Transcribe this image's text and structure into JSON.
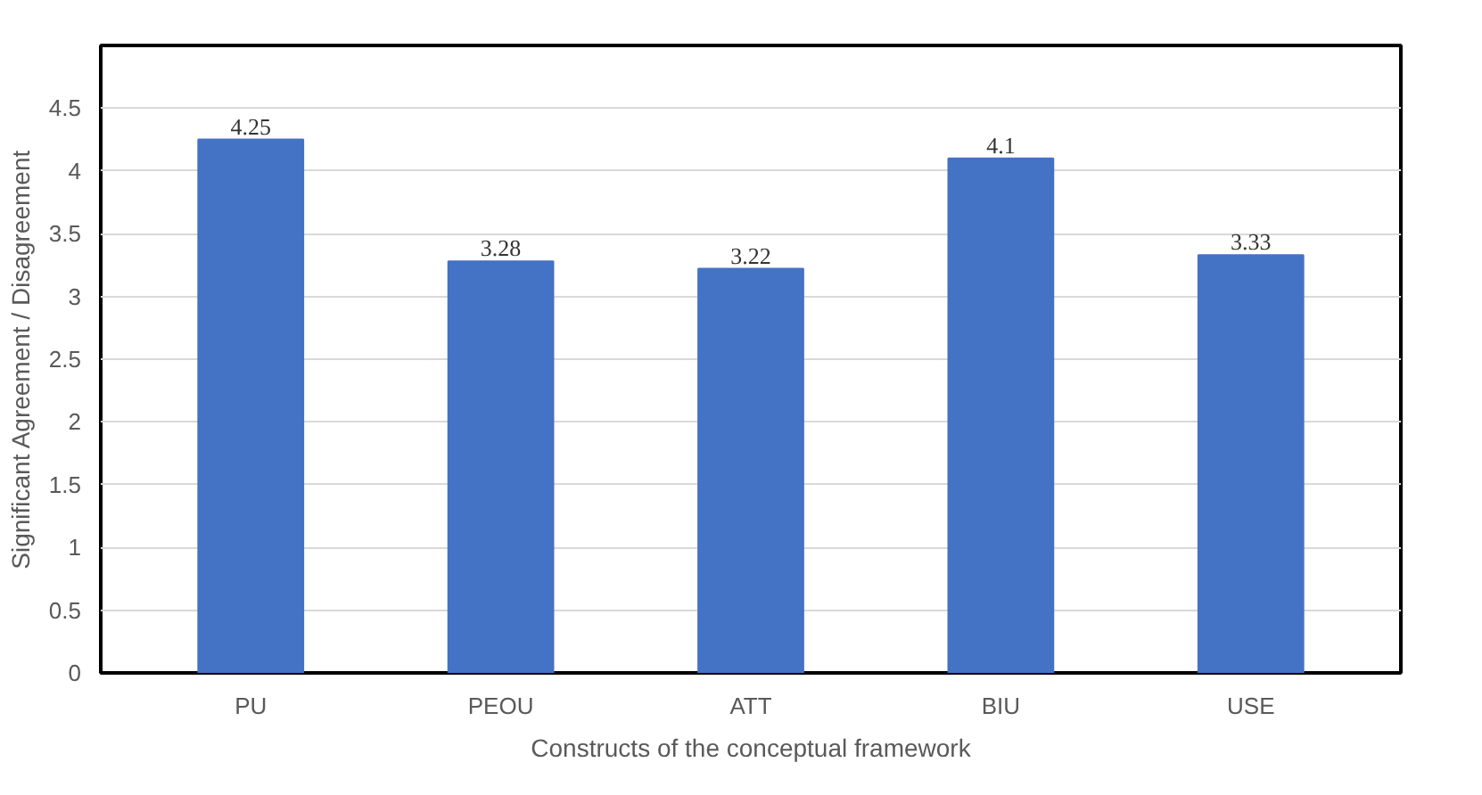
{
  "chart_data": {
    "type": "bar",
    "xlabel": "Constructs of the conceptual framework",
    "ylabel": "Significant Agreement / Disagreement",
    "categories": [
      "PU",
      "PEOU",
      "ATT",
      "BIU",
      "USE"
    ],
    "values": [
      4.25,
      3.28,
      3.22,
      4.1,
      3.33
    ],
    "color": "#4472c4",
    "ylim": [
      0,
      5
    ],
    "yticks": [
      0,
      0.5,
      1,
      1.5,
      2,
      2.5,
      3,
      3.5,
      4,
      4.5
    ],
    "grid": "y",
    "data_labels": true
  }
}
